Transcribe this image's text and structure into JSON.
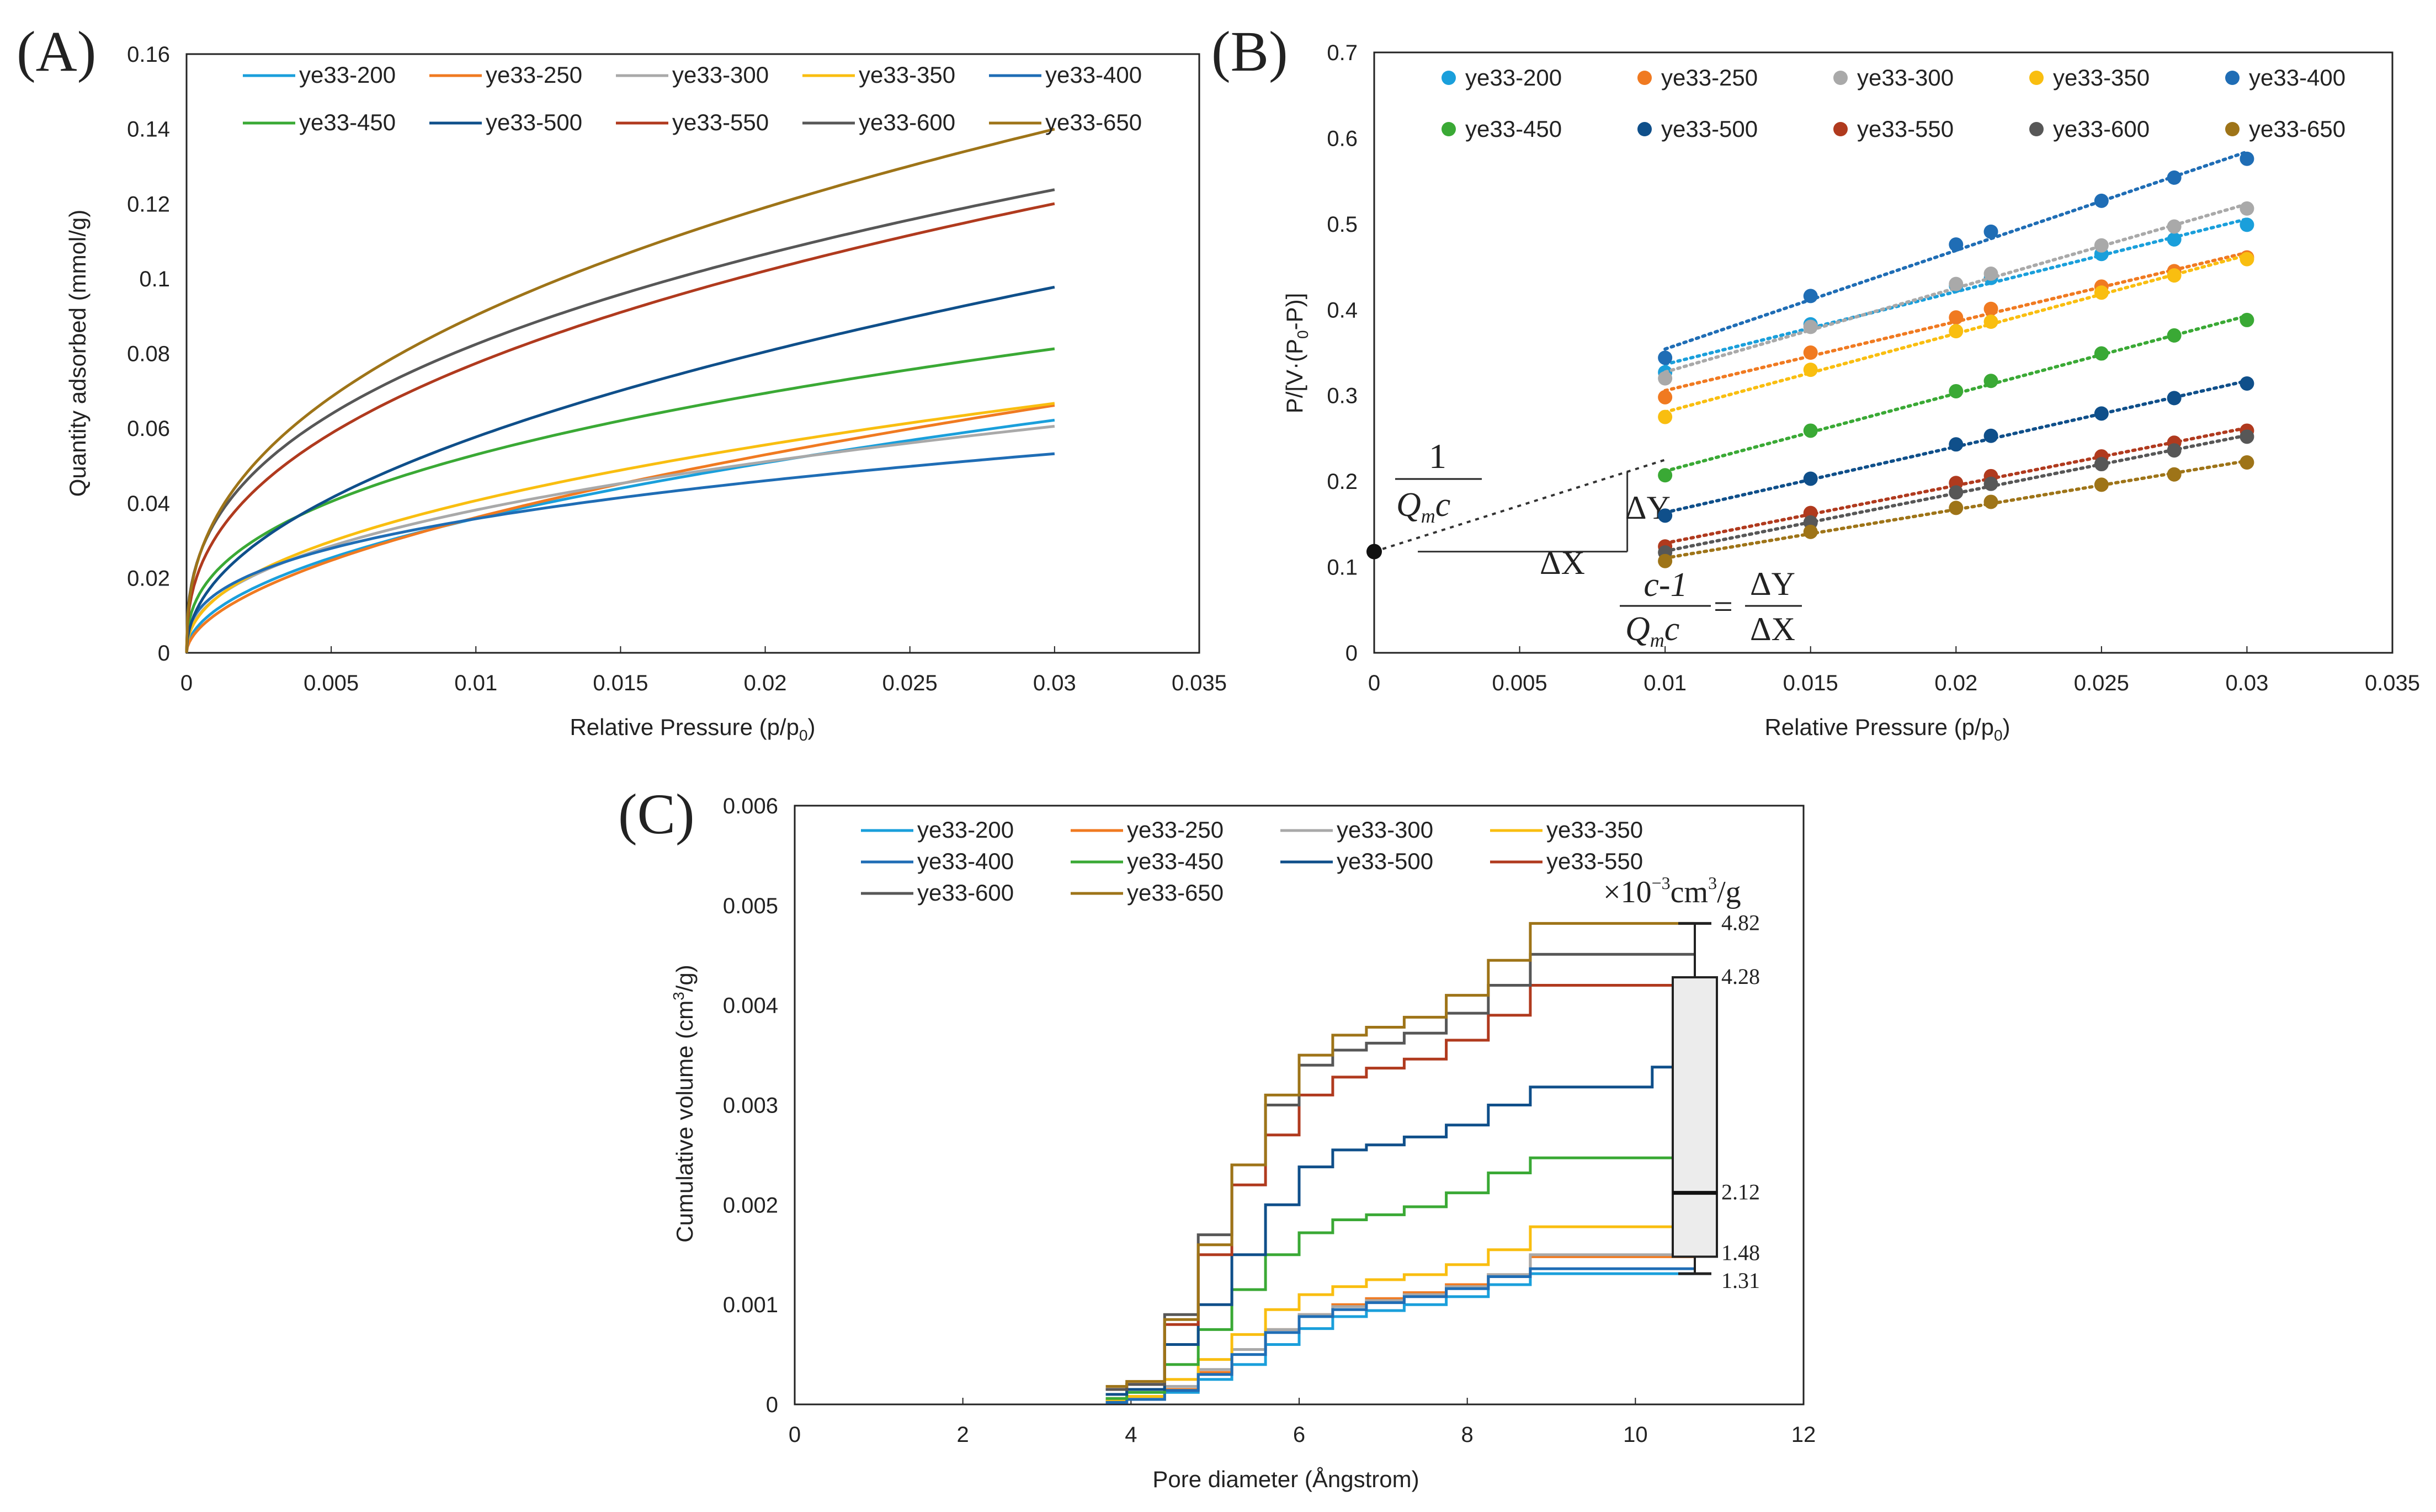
{
  "colors": {
    "ye33-200": "#1a9fdb",
    "ye33-250": "#f07a21",
    "ye33-300": "#a9a9a9",
    "ye33-350": "#f9be10",
    "ye33-400": "#1f6db5",
    "ye33-450": "#3aa935",
    "ye33-500": "#0f4f8a",
    "ye33-550": "#b03a1e",
    "ye33-600": "#575757",
    "ye33-650": "#9e7418"
  },
  "chart_data": [
    {
      "panel": "(A)",
      "type": "line",
      "title": "",
      "xlabel": "Relative Pressure (p/p",
      "xlabel_sub": "0",
      "xlabel_end": ")",
      "ylabel": "Quantity adsorbed (mmol/g)",
      "xlim": [
        0,
        0.035
      ],
      "ylim": [
        0,
        0.16
      ],
      "xticks": [
        0,
        0.005,
        0.01,
        0.015,
        0.02,
        0.025,
        0.03,
        0.035
      ],
      "xtick_labels": [
        "0",
        "0.005",
        "0.01",
        "0.015",
        "0.02",
        "0.025",
        "0.03",
        "0.035"
      ],
      "yticks": [
        0,
        0.02,
        0.04,
        0.06,
        0.08,
        0.1,
        0.12,
        0.14,
        0.16
      ],
      "ytick_labels": [
        "0",
        "0.02",
        "0.04",
        "0.06",
        "0.08",
        "0.1",
        "0.12",
        "0.14",
        "0.16"
      ],
      "legend": "top",
      "series": [
        {
          "name": "ye33-200",
          "k": 0.359,
          "n": 0.5
        },
        {
          "name": "ye33-250",
          "k": 0.455,
          "n": 0.55
        },
        {
          "name": "ye33-300",
          "k": 0.264,
          "n": 0.42
        },
        {
          "name": "ye33-350",
          "k": 0.323,
          "n": 0.45
        },
        {
          "name": "ye33-400",
          "k": 0.188,
          "n": 0.36
        },
        {
          "name": "ye33-450",
          "k": 0.319,
          "n": 0.39
        },
        {
          "name": "ye33-500",
          "k": 0.526,
          "n": 0.48
        },
        {
          "name": "ye33-550",
          "k": 0.488,
          "n": 0.4
        },
        {
          "name": "ye33-600",
          "k": 0.453,
          "n": 0.37
        },
        {
          "name": "ye33-650",
          "k": 0.569,
          "n": 0.4
        }
      ]
    },
    {
      "panel": "(B)",
      "type": "scatter",
      "title": "",
      "xlabel": "Relative Pressure (p/p",
      "xlabel_sub": "0",
      "xlabel_end": ")",
      "ylabel": "P/[V·(P",
      "ylabel_sub": "0",
      "ylabel_end": "-P)]",
      "xlim": [
        0,
        0.035
      ],
      "ylim": [
        0,
        0.7
      ],
      "xticks": [
        0,
        0.005,
        0.01,
        0.015,
        0.02,
        0.025,
        0.03,
        0.035
      ],
      "xtick_labels": [
        "0",
        "0.005",
        "0.01",
        "0.015",
        "0.02",
        "0.025",
        "0.03",
        "0.035"
      ],
      "yticks": [
        0,
        0.1,
        0.2,
        0.3,
        0.4,
        0.5,
        0.6,
        0.7
      ],
      "ytick_labels": [
        "0",
        "0.1",
        "0.2",
        "0.3",
        "0.4",
        "0.5",
        "0.6",
        "0.7"
      ],
      "legend": "top",
      "x": [
        0.01,
        0.015,
        0.02,
        0.0212,
        0.025,
        0.0275,
        0.03
      ],
      "series": [
        {
          "name": "ye33-200",
          "values": [
            0.327,
            0.383,
            0.428,
            0.437,
            0.465,
            0.482,
            0.499
          ]
        },
        {
          "name": "ye33-250",
          "values": [
            0.298,
            0.35,
            0.391,
            0.401,
            0.427,
            0.445,
            0.461
          ]
        },
        {
          "name": "ye33-300",
          "values": [
            0.32,
            0.38,
            0.43,
            0.442,
            0.475,
            0.497,
            0.518
          ]
        },
        {
          "name": "ye33-350",
          "values": [
            0.275,
            0.33,
            0.375,
            0.386,
            0.42,
            0.44,
            0.459
          ]
        },
        {
          "name": "ye33-400",
          "values": [
            0.344,
            0.416,
            0.476,
            0.491,
            0.527,
            0.554,
            0.576
          ]
        },
        {
          "name": "ye33-450",
          "values": [
            0.207,
            0.259,
            0.305,
            0.317,
            0.349,
            0.37,
            0.388
          ]
        },
        {
          "name": "ye33-500",
          "values": [
            0.16,
            0.203,
            0.243,
            0.253,
            0.279,
            0.297,
            0.314
          ]
        },
        {
          "name": "ye33-550",
          "values": [
            0.124,
            0.163,
            0.198,
            0.206,
            0.229,
            0.245,
            0.259
          ]
        },
        {
          "name": "ye33-600",
          "values": [
            0.117,
            0.152,
            0.187,
            0.197,
            0.22,
            0.236,
            0.252
          ]
        },
        {
          "name": "ye33-650",
          "values": [
            0.107,
            0.141,
            0.169,
            0.176,
            0.196,
            0.208,
            0.222
          ]
        }
      ],
      "annotation": {
        "intercept": 0.118,
        "equation_num": "c-1",
        "equation_den": "Q",
        "equation_den_sub": "m",
        "equation_den_end": "c",
        "one": "1",
        "eq_sign": "=",
        "dy": "ΔY",
        "dx": "ΔX"
      }
    },
    {
      "panel": "(C)",
      "type": "line",
      "title": "",
      "xlabel": "Pore diameter (Ångstrom)",
      "ylabel": "Cumulative volume (cm",
      "ylabel_sup": "3",
      "ylabel_end": "/g)",
      "xlim": [
        0,
        12
      ],
      "ylim": [
        0,
        0.006
      ],
      "xticks": [
        0,
        2,
        4,
        6,
        8,
        10,
        12
      ],
      "xtick_labels": [
        "0",
        "2",
        "4",
        "6",
        "8",
        "10",
        "12"
      ],
      "yticks": [
        0,
        0.001,
        0.002,
        0.003,
        0.004,
        0.005,
        0.006
      ],
      "ytick_labels": [
        "0",
        "0.001",
        "0.002",
        "0.003",
        "0.004",
        "0.005",
        "0.006"
      ],
      "legend": "top-left",
      "series": [
        {
          "name": "ye33-200",
          "x": [
            3.7,
            4.2,
            4.6,
            5.0,
            5.4,
            5.8,
            6.2,
            6.6,
            7.0,
            7.5,
            8.0,
            8.5,
            9.0,
            10.7
          ],
          "values": [
            3e-05,
            5e-05,
            0.00012,
            0.00025,
            0.0004,
            0.0006,
            0.00076,
            0.00088,
            0.00094,
            0.001,
            0.00108,
            0.0012,
            0.00131,
            0.00131
          ]
        },
        {
          "name": "ye33-250",
          "x": [
            3.7,
            4.2,
            4.6,
            5.0,
            5.4,
            5.8,
            6.2,
            6.6,
            7.0,
            7.5,
            8.0,
            8.5,
            9.0,
            10.7
          ],
          "values": [
            3e-05,
            6e-05,
            0.00015,
            0.00032,
            0.00055,
            0.00075,
            0.0009,
            0.001,
            0.00106,
            0.00112,
            0.0012,
            0.0013,
            0.00148,
            0.00148
          ]
        },
        {
          "name": "ye33-300",
          "x": [
            3.7,
            4.2,
            4.6,
            5.0,
            5.4,
            5.8,
            6.2,
            6.6,
            7.0,
            7.5,
            8.0,
            8.5,
            9.0,
            10.4,
            10.7
          ],
          "values": [
            3e-05,
            6e-05,
            0.00018,
            0.00035,
            0.00055,
            0.00075,
            0.0009,
            0.00098,
            0.00104,
            0.0011,
            0.00118,
            0.0013,
            0.0015,
            0.0015,
            0.00155
          ]
        },
        {
          "name": "ye33-350",
          "x": [
            3.7,
            4.2,
            4.6,
            5.0,
            5.4,
            5.8,
            6.2,
            6.6,
            7.0,
            7.5,
            8.0,
            8.5,
            9.0,
            10.7
          ],
          "values": [
            4e-05,
            8e-05,
            0.00025,
            0.00045,
            0.0007,
            0.00095,
            0.0011,
            0.00118,
            0.00125,
            0.0013,
            0.0014,
            0.00155,
            0.00178,
            0.00178
          ]
        },
        {
          "name": "ye33-400",
          "x": [
            3.7,
            4.2,
            4.6,
            5.0,
            5.4,
            5.8,
            6.2,
            6.6,
            7.0,
            7.5,
            8.0,
            8.5,
            9.0,
            10.7
          ],
          "values": [
            2e-05,
            5e-05,
            0.00014,
            0.0003,
            0.0005,
            0.00072,
            0.00088,
            0.00095,
            0.00102,
            0.00108,
            0.00116,
            0.00128,
            0.00136,
            0.00136
          ]
        },
        {
          "name": "ye33-450",
          "x": [
            3.7,
            4.2,
            4.6,
            5.0,
            5.4,
            5.8,
            6.2,
            6.6,
            7.0,
            7.5,
            8.0,
            8.5,
            9.0,
            10.7
          ],
          "values": [
            6e-05,
            0.00012,
            0.0004,
            0.00075,
            0.00115,
            0.0015,
            0.00172,
            0.00185,
            0.0019,
            0.00198,
            0.00212,
            0.00232,
            0.00247,
            0.00247
          ]
        },
        {
          "name": "ye33-500",
          "x": [
            3.7,
            4.2,
            4.6,
            5.0,
            5.4,
            5.8,
            6.2,
            6.6,
            7.0,
            7.5,
            8.0,
            8.5,
            9.0,
            10.0,
            10.4,
            10.7
          ],
          "values": [
            0.0001,
            0.00015,
            0.0006,
            0.001,
            0.0015,
            0.002,
            0.00238,
            0.00255,
            0.0026,
            0.00268,
            0.0028,
            0.003,
            0.00318,
            0.00318,
            0.00338,
            0.00338
          ]
        },
        {
          "name": "ye33-550",
          "x": [
            3.7,
            4.2,
            4.6,
            5.0,
            5.4,
            5.8,
            6.2,
            6.6,
            7.0,
            7.5,
            8.0,
            8.5,
            9.0,
            10.7
          ],
          "values": [
            0.00015,
            0.0002,
            0.0008,
            0.0015,
            0.0022,
            0.0027,
            0.0031,
            0.00328,
            0.00337,
            0.00346,
            0.00365,
            0.0039,
            0.0042,
            0.0042
          ]
        },
        {
          "name": "ye33-600",
          "x": [
            3.7,
            4.2,
            4.6,
            5.0,
            5.4,
            5.8,
            6.2,
            6.6,
            7.0,
            7.5,
            8.0,
            8.5,
            9.0,
            10.7
          ],
          "values": [
            0.00015,
            0.0002,
            0.0009,
            0.0017,
            0.0024,
            0.003,
            0.0034,
            0.00355,
            0.00362,
            0.00372,
            0.00392,
            0.0042,
            0.00451,
            0.00451
          ]
        },
        {
          "name": "ye33-650",
          "x": [
            3.7,
            4.2,
            4.6,
            5.0,
            5.4,
            5.8,
            6.2,
            6.6,
            7.0,
            7.5,
            8.0,
            8.5,
            9.0,
            10.7
          ],
          "values": [
            0.00018,
            0.00023,
            0.00085,
            0.0016,
            0.0024,
            0.0031,
            0.0035,
            0.0037,
            0.00378,
            0.00388,
            0.0041,
            0.00445,
            0.00482,
            0.00482
          ]
        }
      ],
      "boxplot": {
        "unit_prefix": "×10",
        "unit_exp": "−3",
        "unit_mid": "cm",
        "unit_sup": "3",
        "unit_end": "/g",
        "max": 4.82,
        "q3": 4.28,
        "median": 2.12,
        "q1": 1.48,
        "min": 1.31,
        "labels": [
          "4.82",
          "4.28",
          "2.12",
          "1.48",
          "1.31"
        ]
      }
    }
  ]
}
